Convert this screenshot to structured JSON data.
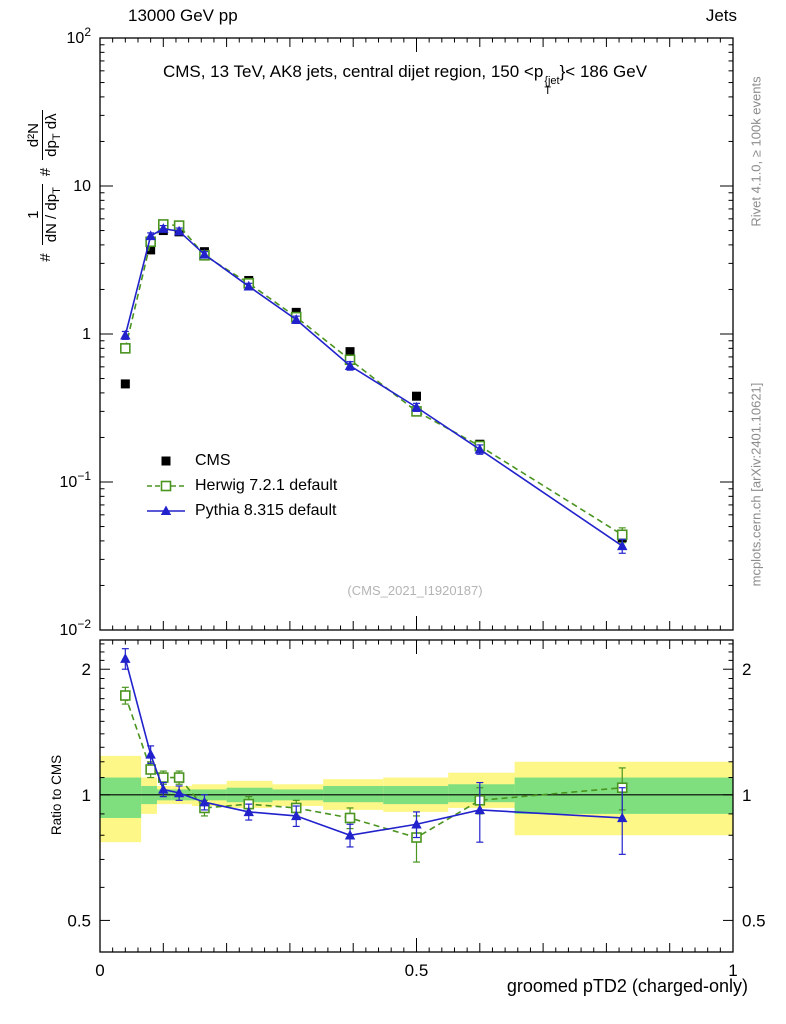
{
  "header": {
    "top_left": "13000 GeV pp",
    "top_right": "Jets"
  },
  "title": {
    "part1": "CMS, 13 TeV, AK8 jets, central dijet region, 150 <p",
    "sup": "{jet",
    "sub": "T",
    "part2": "}< 186 GeV"
  },
  "ylabel": {
    "hash1": "#",
    "frac1_num": "1",
    "frac1_den_main": "dN / dp",
    "frac1_den_sub": "T",
    "hash2": "#",
    "frac2_num": "d²N",
    "frac2_den_main": "dp",
    "frac2_den_sub": "T",
    "frac2_den_tail": " dλ"
  },
  "credits": {
    "right_top": "Rivet 4.1.0, ≥ 100k events",
    "right_bottom": "mcplots.cern.ch [arXiv:2401.10621]"
  },
  "watermark": "(CMS_2021_I1920187)",
  "legend": {
    "items": [
      {
        "label": "CMS",
        "marker": "square-filled",
        "color": "#000000",
        "line": "none"
      },
      {
        "label": "Herwig 7.2.1 default",
        "marker": "square-open",
        "color": "#4a9420",
        "line": "dashed"
      },
      {
        "label": "Pythia 8.315 default",
        "marker": "triangle-filled",
        "color": "#2222cc",
        "line": "solid"
      }
    ]
  },
  "colors": {
    "band_yellow": "#fdf788",
    "band_green": "#7fdf7f",
    "frame": "#000000",
    "credits_text": "#8c8c8c",
    "watermark_text": "#b4b4b4"
  },
  "chart_data": {
    "type": "line",
    "title": "CMS, 13 TeV, AK8 jets, central dijet region, 150 < pT^{jet} < 186 GeV",
    "xlabel": "groomed pTD2 (charged-only)",
    "xlim": [
      0,
      1
    ],
    "grid": false,
    "legend_position": "inside-left",
    "x": [
      0.04,
      0.08,
      0.1,
      0.125,
      0.165,
      0.235,
      0.31,
      0.395,
      0.5,
      0.6,
      0.825
    ],
    "xticks": [
      {
        "v": 0,
        "label": "0"
      },
      {
        "v": 0.5,
        "label": "0.5"
      },
      {
        "v": 1,
        "label": "1"
      }
    ],
    "main_yticks": [
      {
        "v": 0.01,
        "base": "10",
        "exp": "−2"
      },
      {
        "v": 0.1,
        "base": "10",
        "exp": "−1"
      },
      {
        "v": 1,
        "base": "1"
      },
      {
        "v": 10,
        "base": "10"
      },
      {
        "v": 100,
        "base": "10",
        "exp": "2"
      }
    ],
    "ratio_yticks": [
      {
        "v": 0.5,
        "label": "0.5"
      },
      {
        "v": 1,
        "label": "1"
      },
      {
        "v": 2,
        "label": "2"
      }
    ],
    "main": {
      "ylog": true,
      "ylim": [
        0.01,
        100
      ],
      "series": [
        {
          "name": "CMS",
          "color": "#000000",
          "marker": "square-filled",
          "line": "none",
          "values": [
            0.46,
            3.7,
            5.0,
            4.9,
            3.6,
            2.3,
            1.4,
            0.76,
            0.38,
            0.18,
            0.042
          ],
          "errors": [
            0.02,
            0.12,
            0.15,
            0.15,
            0.1,
            0.07,
            0.05,
            0.03,
            0.015,
            0.008,
            0.003
          ]
        },
        {
          "name": "Herwig 7.2.1 default",
          "color": "#4a9420",
          "marker": "square-open",
          "line": "dashed",
          "values": [
            0.8,
            4.2,
            5.5,
            5.4,
            3.4,
            2.2,
            1.3,
            0.67,
            0.3,
            0.175,
            0.044
          ],
          "errors": [
            0.05,
            0.2,
            0.25,
            0.25,
            0.15,
            0.1,
            0.07,
            0.04,
            0.02,
            0.012,
            0.005
          ]
        },
        {
          "name": "Pythia 8.315 default",
          "color": "#2222cc",
          "marker": "triangle-filled",
          "line": "solid",
          "values": [
            0.98,
            4.6,
            5.15,
            4.95,
            3.45,
            2.1,
            1.25,
            0.61,
            0.32,
            0.166,
            0.037
          ],
          "errors": [
            0.06,
            0.22,
            0.25,
            0.25,
            0.15,
            0.1,
            0.07,
            0.04,
            0.02,
            0.012,
            0.004
          ]
        }
      ]
    },
    "ratio": {
      "ylog": true,
      "ylim": [
        0.42,
        2.35
      ],
      "ylabel": "Ratio to CMS",
      "band_edges": [
        0,
        0.065,
        0.09,
        0.1125,
        0.145,
        0.2,
        0.2725,
        0.3525,
        0.4475,
        0.55,
        0.655,
        1.0
      ],
      "yellow": [
        [
          0.77,
          1.24
        ],
        [
          0.9,
          1.1
        ],
        [
          0.95,
          1.05
        ],
        [
          0.95,
          1.05
        ],
        [
          0.94,
          1.06
        ],
        [
          0.93,
          1.08
        ],
        [
          0.94,
          1.06
        ],
        [
          0.92,
          1.09
        ],
        [
          0.91,
          1.1
        ],
        [
          0.93,
          1.13
        ],
        [
          0.8,
          1.2
        ]
      ],
      "green": [
        [
          0.88,
          1.1
        ],
        [
          0.95,
          1.05
        ],
        [
          0.97,
          1.03
        ],
        [
          0.97,
          1.03
        ],
        [
          0.97,
          1.03
        ],
        [
          0.96,
          1.04
        ],
        [
          0.97,
          1.03
        ],
        [
          0.96,
          1.05
        ],
        [
          0.95,
          1.05
        ],
        [
          0.96,
          1.06
        ],
        [
          0.9,
          1.1
        ]
      ],
      "series": [
        {
          "name": "Herwig 7.2.1 default",
          "color": "#4a9420",
          "marker": "square-open",
          "line": "dashed",
          "values": [
            1.73,
            1.15,
            1.1,
            1.1,
            0.93,
            0.95,
            0.93,
            0.88,
            0.79,
            0.97,
            1.04
          ],
          "errors": [
            0.08,
            0.05,
            0.04,
            0.04,
            0.04,
            0.04,
            0.04,
            0.05,
            0.1,
            0.07,
            0.12
          ]
        },
        {
          "name": "Pythia 8.315 default",
          "color": "#2222cc",
          "marker": "triangle-filled",
          "line": "solid",
          "values": [
            2.12,
            1.25,
            1.03,
            1.01,
            0.96,
            0.91,
            0.89,
            0.8,
            0.85,
            0.92,
            0.88
          ],
          "errors": [
            0.12,
            0.06,
            0.04,
            0.04,
            0.04,
            0.04,
            0.05,
            0.05,
            0.06,
            0.15,
            0.16
          ]
        }
      ]
    }
  }
}
